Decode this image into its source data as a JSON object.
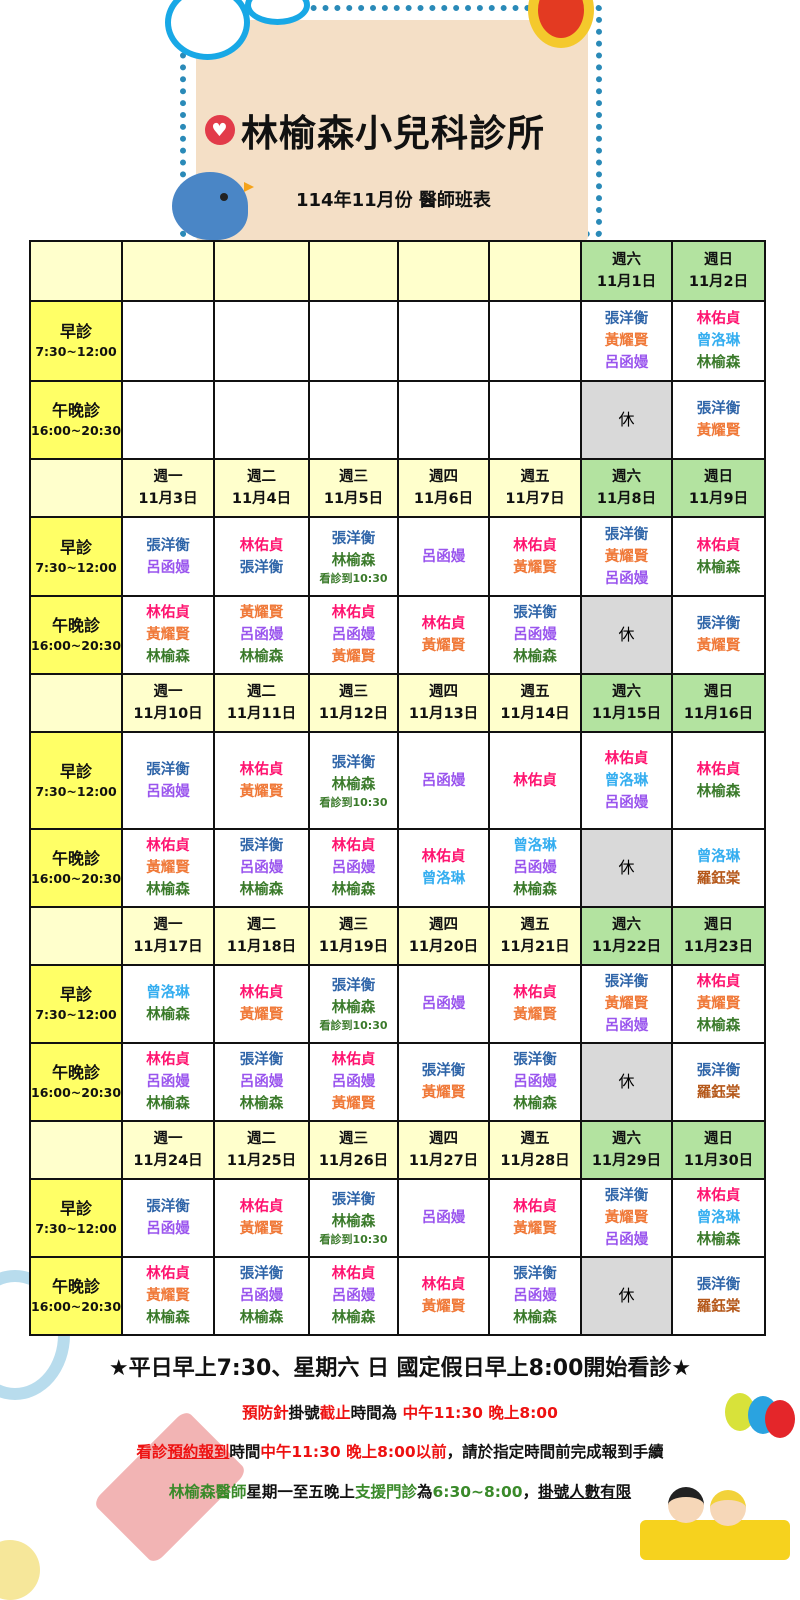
{
  "header": {
    "title": "林榆森小兒科診所",
    "subtitle": "114年11月份  醫師班表",
    "heart_icon": "heart-icon"
  },
  "colors": {
    "張洋衡": "#2e64a8",
    "黃耀賢": "#f07a3a",
    "呂函嫚": "#9a55ee",
    "林佑貞": "#ff1470",
    "曾洛琳": "#35aef0",
    "林榆森": "#3a7a2a",
    "羅鈺棠": "#b5581a",
    "note": "#3a7a2a",
    "header_weekday": "#ffffcc",
    "header_weekend": "#b3e3a0",
    "session_label": "#ffff66",
    "rest": "#d9d9d9"
  },
  "sessions": {
    "morning": {
      "label": "早診",
      "time": "7:30~12:00"
    },
    "evening": {
      "label": "午晚診",
      "time": "16:00~20:30"
    }
  },
  "rest_label": "休",
  "weeks": [
    {
      "days": [
        null,
        null,
        null,
        null,
        null,
        {
          "wd": "週六",
          "date": "11月1日"
        },
        {
          "wd": "週日",
          "date": "11月2日"
        }
      ],
      "morning": [
        [],
        [],
        [],
        [],
        [],
        [
          "張洋衡",
          "黃耀賢",
          "呂函嫚"
        ],
        [
          "林佑貞",
          "曾洛琳",
          "林榆森"
        ]
      ],
      "evening": [
        [],
        [],
        [],
        [],
        [],
        "休",
        [
          "張洋衡",
          "黃耀賢"
        ]
      ]
    },
    {
      "days": [
        {
          "wd": "週一",
          "date": "11月3日"
        },
        {
          "wd": "週二",
          "date": "11月4日"
        },
        {
          "wd": "週三",
          "date": "11月5日"
        },
        {
          "wd": "週四",
          "date": "11月6日"
        },
        {
          "wd": "週五",
          "date": "11月7日"
        },
        {
          "wd": "週六",
          "date": "11月8日"
        },
        {
          "wd": "週日",
          "date": "11月9日"
        }
      ],
      "morning": [
        [
          "張洋衡",
          "呂函嫚"
        ],
        [
          "林佑貞",
          "張洋衡"
        ],
        [
          "張洋衡",
          "林榆森",
          "看診到10:30"
        ],
        [
          "呂函嫚"
        ],
        [
          "林佑貞",
          "黃耀賢"
        ],
        [
          "張洋衡",
          "黃耀賢",
          "呂函嫚"
        ],
        [
          "林佑貞",
          "林榆森"
        ]
      ],
      "evening": [
        [
          "林佑貞",
          "黃耀賢",
          "林榆森"
        ],
        [
          "黃耀賢",
          "呂函嫚",
          "林榆森"
        ],
        [
          "林佑貞",
          "呂函嫚",
          "黃耀賢"
        ],
        [
          "林佑貞",
          "黃耀賢"
        ],
        [
          "張洋衡",
          "呂函嫚",
          "林榆森"
        ],
        "休",
        [
          "張洋衡",
          "黃耀賢"
        ]
      ]
    },
    {
      "days": [
        {
          "wd": "週一",
          "date": "11月10日"
        },
        {
          "wd": "週二",
          "date": "11月11日"
        },
        {
          "wd": "週三",
          "date": "11月12日"
        },
        {
          "wd": "週四",
          "date": "11月13日"
        },
        {
          "wd": "週五",
          "date": "11月14日"
        },
        {
          "wd": "週六",
          "date": "11月15日"
        },
        {
          "wd": "週日",
          "date": "11月16日"
        }
      ],
      "morning": [
        [
          "張洋衡",
          "呂函嫚"
        ],
        [
          "林佑貞",
          "黃耀賢"
        ],
        [
          "張洋衡",
          "林榆森",
          "看診到10:30"
        ],
        [
          "呂函嫚"
        ],
        [
          "林佑貞"
        ],
        [
          "林佑貞",
          "曾洛琳",
          "呂函嫚"
        ],
        [
          "林佑貞",
          "林榆森"
        ]
      ],
      "evening": [
        [
          "林佑貞",
          "黃耀賢",
          "林榆森"
        ],
        [
          "張洋衡",
          "呂函嫚",
          "林榆森"
        ],
        [
          "林佑貞",
          "呂函嫚",
          "林榆森"
        ],
        [
          "林佑貞",
          "曾洛琳"
        ],
        [
          "曾洛琳",
          "呂函嫚",
          "林榆森"
        ],
        "休",
        [
          "曾洛琳",
          "羅鈺棠"
        ]
      ]
    },
    {
      "days": [
        {
          "wd": "週一",
          "date": "11月17日"
        },
        {
          "wd": "週二",
          "date": "11月18日"
        },
        {
          "wd": "週三",
          "date": "11月19日"
        },
        {
          "wd": "週四",
          "date": "11月20日"
        },
        {
          "wd": "週五",
          "date": "11月21日"
        },
        {
          "wd": "週六",
          "date": "11月22日"
        },
        {
          "wd": "週日",
          "date": "11月23日"
        }
      ],
      "morning": [
        [
          "曾洛琳",
          "林榆森"
        ],
        [
          "林佑貞",
          "黃耀賢"
        ],
        [
          "張洋衡",
          "林榆森",
          "看診到10:30"
        ],
        [
          "呂函嫚"
        ],
        [
          "林佑貞",
          "黃耀賢"
        ],
        [
          "張洋衡",
          "黃耀賢",
          "呂函嫚"
        ],
        [
          "林佑貞",
          "黃耀賢",
          "林榆森"
        ]
      ],
      "evening": [
        [
          "林佑貞",
          "呂函嫚",
          "林榆森"
        ],
        [
          "張洋衡",
          "呂函嫚",
          "林榆森"
        ],
        [
          "林佑貞",
          "呂函嫚",
          "黃耀賢"
        ],
        [
          "張洋衡",
          "黃耀賢"
        ],
        [
          "張洋衡",
          "呂函嫚",
          "林榆森"
        ],
        "休",
        [
          "張洋衡",
          "羅鈺棠"
        ]
      ]
    },
    {
      "days": [
        {
          "wd": "週一",
          "date": "11月24日"
        },
        {
          "wd": "週二",
          "date": "11月25日"
        },
        {
          "wd": "週三",
          "date": "11月26日"
        },
        {
          "wd": "週四",
          "date": "11月27日"
        },
        {
          "wd": "週五",
          "date": "11月28日"
        },
        {
          "wd": "週六",
          "date": "11月29日"
        },
        {
          "wd": "週日",
          "date": "11月30日"
        }
      ],
      "morning": [
        [
          "張洋衡",
          "呂函嫚"
        ],
        [
          "林佑貞",
          "黃耀賢"
        ],
        [
          "張洋衡",
          "林榆森",
          "看診到10:30"
        ],
        [
          "呂函嫚"
        ],
        [
          "林佑貞",
          "黃耀賢"
        ],
        [
          "張洋衡",
          "黃耀賢",
          "呂函嫚"
        ],
        [
          "林佑貞",
          "曾洛琳",
          "林榆森"
        ]
      ],
      "evening": [
        [
          "林佑貞",
          "黃耀賢",
          "林榆森"
        ],
        [
          "張洋衡",
          "呂函嫚",
          "林榆森"
        ],
        [
          "林佑貞",
          "呂函嫚",
          "林榆森"
        ],
        [
          "林佑貞",
          "黃耀賢"
        ],
        [
          "張洋衡",
          "呂函嫚",
          "林榆森"
        ],
        "休",
        [
          "張洋衡",
          "羅鈺棠"
        ]
      ]
    }
  ],
  "footer": {
    "headline": "★平日早上7:30、星期六 日 國定假日早上8:00開始看診★",
    "lines": [
      [
        {
          "t": "預防針",
          "c": "#ee1111"
        },
        {
          "t": "掛號",
          "c": "#111111"
        },
        {
          "t": "截止",
          "c": "#ee1111"
        },
        {
          "t": "時間為 ",
          "c": "#111111"
        },
        {
          "t": "中午11:30 晚上8:00",
          "c": "#ee1111"
        }
      ],
      [
        {
          "t": "看診",
          "c": "#ee1111"
        },
        {
          "t": "預約報到",
          "c": "#ee1111",
          "u": true
        },
        {
          "t": "時間",
          "c": "#111111"
        },
        {
          "t": "中午11:30 晚上8:00以前",
          "c": "#ee1111"
        },
        {
          "t": "，請於指定時間前完成報到手續",
          "c": "#111111"
        }
      ],
      [
        {
          "t": "林榆森醫師",
          "c": "#3a8a2a"
        },
        {
          "t": "星期一至五晚上",
          "c": "#111111"
        },
        {
          "t": "支援門診",
          "c": "#3a8a2a"
        },
        {
          "t": "為",
          "c": "#111111"
        },
        {
          "t": "6:30~8:00",
          "c": "#3a8a2a"
        },
        {
          "t": "，",
          "c": "#111111"
        },
        {
          "t": "掛號人數有限",
          "c": "#111111",
          "u": true
        }
      ]
    ]
  }
}
